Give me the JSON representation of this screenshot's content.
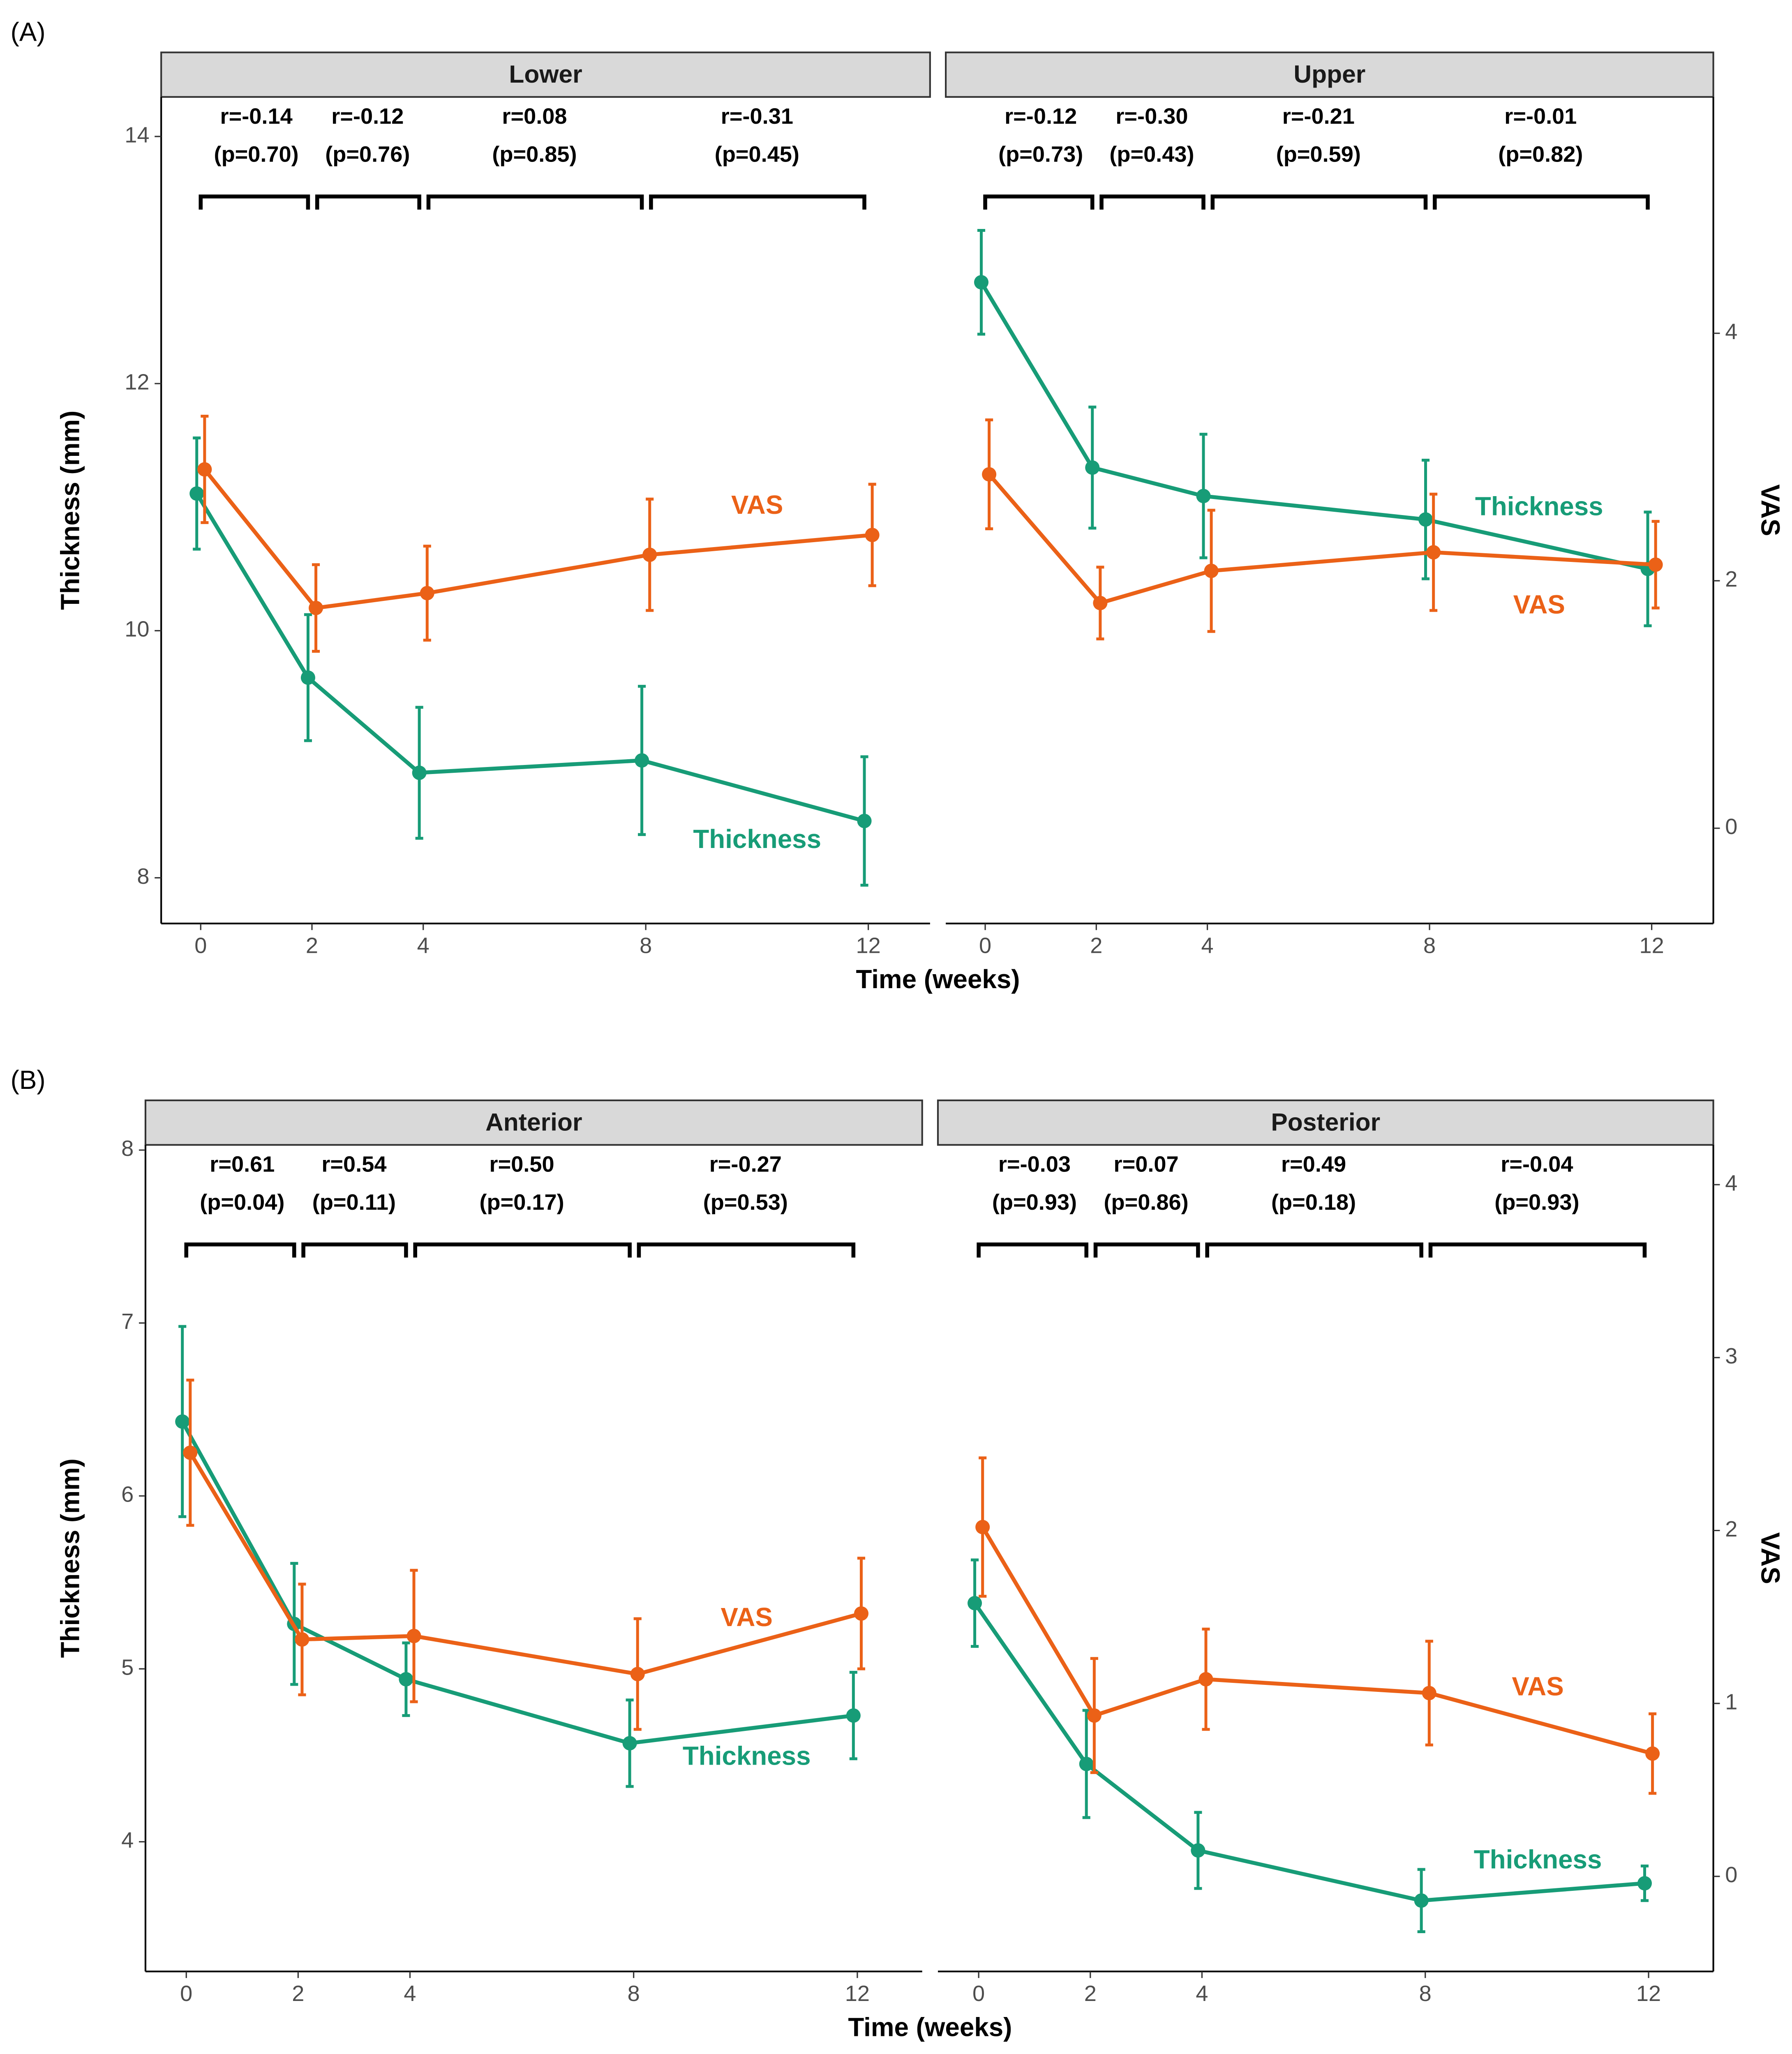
{
  "chart_data": [
    {
      "type": "line",
      "panel_label": "(A)",
      "facet": "Lower",
      "x_label": "Time (weeks)",
      "y_label": "Thickness (mm)",
      "x": [
        0,
        2,
        4,
        8,
        12
      ],
      "xlim": [
        -0.71,
        13.11
      ],
      "xticks": [
        0,
        2,
        4,
        8,
        12
      ],
      "ylim": [
        7.63,
        14.32
      ],
      "yticks": [
        8,
        10,
        12,
        14
      ],
      "y2lim": [
        -0.77,
        5.91
      ],
      "series": [
        {
          "name": "Thickness",
          "color": "#179c77",
          "values": [
            11.11,
            9.62,
            8.85,
            8.95,
            8.46
          ],
          "errors": [
            0.45,
            0.51,
            0.53,
            0.6,
            0.52
          ]
        },
        {
          "name": "VAS",
          "color": "#eb6117",
          "axis": "y2",
          "values": [
            2.9,
            1.78,
            1.9,
            2.21,
            2.37
          ],
          "errors": [
            0.43,
            0.35,
            0.38,
            0.45,
            0.41
          ]
        }
      ],
      "correlations": [
        {
          "r": "r=-0.14",
          "p": "(p=0.70)"
        },
        {
          "r": "r=-0.12",
          "p": "(p=0.76)"
        },
        {
          "r": "r=0.08",
          "p": "(p=0.85)"
        },
        {
          "r": "r=-0.31",
          "p": "(p=0.45)"
        }
      ]
    },
    {
      "type": "line",
      "facet": "Upper",
      "y2_label": "VAS",
      "x": [
        0,
        2,
        4,
        8,
        12
      ],
      "xlim": [
        -0.71,
        13.11
      ],
      "xticks": [
        0,
        2,
        4,
        8,
        12
      ],
      "ylim": [
        7.63,
        14.32
      ],
      "y2lim": [
        -0.77,
        5.91
      ],
      "y2ticks": [
        0,
        2,
        4
      ],
      "series": [
        {
          "name": "Thickness",
          "color": "#179c77",
          "values": [
            12.82,
            11.32,
            11.09,
            10.9,
            10.5
          ],
          "errors": [
            0.42,
            0.49,
            0.5,
            0.48,
            0.46
          ]
        },
        {
          "name": "VAS",
          "color": "#eb6117",
          "axis": "y2",
          "values": [
            2.86,
            1.82,
            2.08,
            2.23,
            2.13
          ],
          "errors": [
            0.44,
            0.29,
            0.49,
            0.47,
            0.35
          ]
        }
      ],
      "correlations": [
        {
          "r": "r=-0.12",
          "p": "(p=0.73)"
        },
        {
          "r": "r=-0.30",
          "p": "(p=0.43)"
        },
        {
          "r": "r=-0.21",
          "p": "(p=0.59)"
        },
        {
          "r": "r=-0.01",
          "p": "(p=0.82)"
        }
      ]
    },
    {
      "type": "line",
      "panel_label": "(B)",
      "facet": "Anterior",
      "x_label": "Time (weeks)",
      "y_label": "Thickness (mm)",
      "x": [
        0,
        2,
        4,
        8,
        12
      ],
      "xlim": [
        -0.73,
        13.16
      ],
      "xticks": [
        0,
        2,
        4,
        8,
        12
      ],
      "ylim": [
        3.25,
        8.03
      ],
      "yticks": [
        4,
        5,
        6,
        7,
        8
      ],
      "y2lim": [
        -0.55,
        4.23
      ],
      "series": [
        {
          "name": "Thickness",
          "color": "#179c77",
          "values": [
            6.43,
            5.26,
            4.94,
            4.57,
            4.73
          ],
          "errors": [
            0.55,
            0.35,
            0.21,
            0.25,
            0.25
          ]
        },
        {
          "name": "VAS",
          "color": "#eb6117",
          "axis": "y2",
          "values": [
            2.45,
            1.37,
            1.39,
            1.17,
            1.52
          ],
          "errors": [
            0.42,
            0.32,
            0.38,
            0.32,
            0.32
          ]
        }
      ],
      "correlations": [
        {
          "r": "r=0.61",
          "p": "(p=0.04)"
        },
        {
          "r": "r=0.54",
          "p": "(p=0.11)"
        },
        {
          "r": "r=0.50",
          "p": "(p=0.17)"
        },
        {
          "r": "r=-0.27",
          "p": "(p=0.53)"
        }
      ]
    },
    {
      "type": "line",
      "facet": "Posterior",
      "y2_label": "VAS",
      "x": [
        0,
        2,
        4,
        8,
        12
      ],
      "xlim": [
        -0.73,
        13.16
      ],
      "xticks": [
        0,
        2,
        4,
        8,
        12
      ],
      "ylim": [
        3.25,
        8.03
      ],
      "y2lim": [
        -0.55,
        4.23
      ],
      "y2ticks": [
        0,
        1,
        2,
        3,
        4
      ],
      "series": [
        {
          "name": "Thickness",
          "color": "#179c77",
          "values": [
            5.38,
            4.45,
            3.95,
            3.66,
            3.76
          ],
          "errors": [
            0.25,
            0.31,
            0.22,
            0.18,
            0.1
          ]
        },
        {
          "name": "VAS",
          "color": "#eb6117",
          "axis": "y2",
          "values": [
            2.02,
            0.93,
            1.14,
            1.06,
            0.71
          ],
          "errors": [
            0.4,
            0.33,
            0.29,
            0.3,
            0.23
          ]
        }
      ],
      "correlations": [
        {
          "r": "r=-0.03",
          "p": "(p=0.93)"
        },
        {
          "r": "r=0.07",
          "p": "(p=0.86)"
        },
        {
          "r": "r=0.49",
          "p": "(p=0.18)"
        },
        {
          "r": "r=-0.04",
          "p": "(p=0.93)"
        }
      ]
    }
  ]
}
